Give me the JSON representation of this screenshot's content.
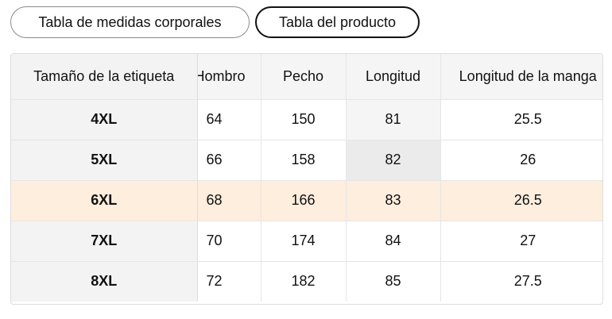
{
  "tabs": {
    "body_measurements": "Tabla de medidas corporales",
    "product_table": "Tabla del producto"
  },
  "table": {
    "headers": [
      "Tamaño de la etiqueta",
      "Hombro",
      "Pecho",
      "Longitud",
      "Longitud de la manga"
    ],
    "rows": [
      [
        "4XL",
        "64",
        "150",
        "81",
        "25.5"
      ],
      [
        "5XL",
        "66",
        "158",
        "82",
        "26"
      ],
      [
        "6XL",
        "68",
        "166",
        "83",
        "26.5"
      ],
      [
        "7XL",
        "70",
        "174",
        "84",
        "27"
      ],
      [
        "8XL",
        "72",
        "182",
        "85",
        "27.5"
      ]
    ],
    "highlighted_row": "6XL"
  },
  "colors": {
    "highlight_row": "#fdeede",
    "header_bg": "#f5f5f5",
    "size_column_bg": "#f3f3f3",
    "hovered_cell_bg": "#ebebeb"
  }
}
